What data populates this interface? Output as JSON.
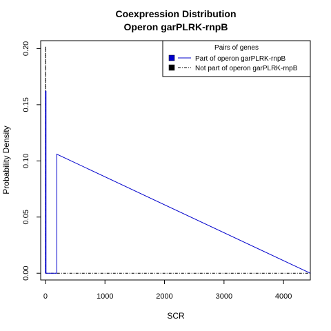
{
  "chart_data": {
    "type": "line",
    "title": "Coexpression Distribution",
    "subtitle": "Operon garPLRK-rnpB",
    "xlabel": "SCR",
    "ylabel": "Probability Density",
    "xlim": [
      -80,
      4450
    ],
    "ylim": [
      -0.006,
      0.207
    ],
    "x_ticks": [
      0,
      1000,
      2000,
      3000,
      4000
    ],
    "x_tick_labels": [
      "0",
      "1000",
      "2000",
      "3000",
      "4000"
    ],
    "y_ticks": [
      0.0,
      0.05,
      0.1,
      0.15,
      0.2
    ],
    "y_tick_labels": [
      "0.00",
      "0.05",
      "0.10",
      "0.15",
      "0.20"
    ],
    "legend": {
      "title": "Pairs of genes",
      "placement": "top-right",
      "entries": [
        {
          "label": "Part of operon garPLRK-rnpB",
          "color": "#0000cc",
          "line": "solid"
        },
        {
          "label": "Not part of operon garPLRK-rnpB",
          "color": "#000000",
          "line": "dashed"
        }
      ]
    },
    "series": [
      {
        "name": "Part of operon garPLRK-rnpB",
        "color": "#0000cc",
        "line": "solid",
        "x": [
          0,
          0,
          10,
          10,
          190,
          190,
          4450
        ],
        "y": [
          0.0,
          0.162,
          0.162,
          0.0,
          0.0,
          0.106,
          0.0
        ]
      },
      {
        "name": "Not part of operon garPLRK-rnpB",
        "color": "#000000",
        "line": "dashed",
        "x": [
          0,
          0,
          4,
          4,
          4450
        ],
        "y": [
          0.0,
          0.202,
          0.202,
          0.0,
          0.0
        ]
      }
    ]
  }
}
